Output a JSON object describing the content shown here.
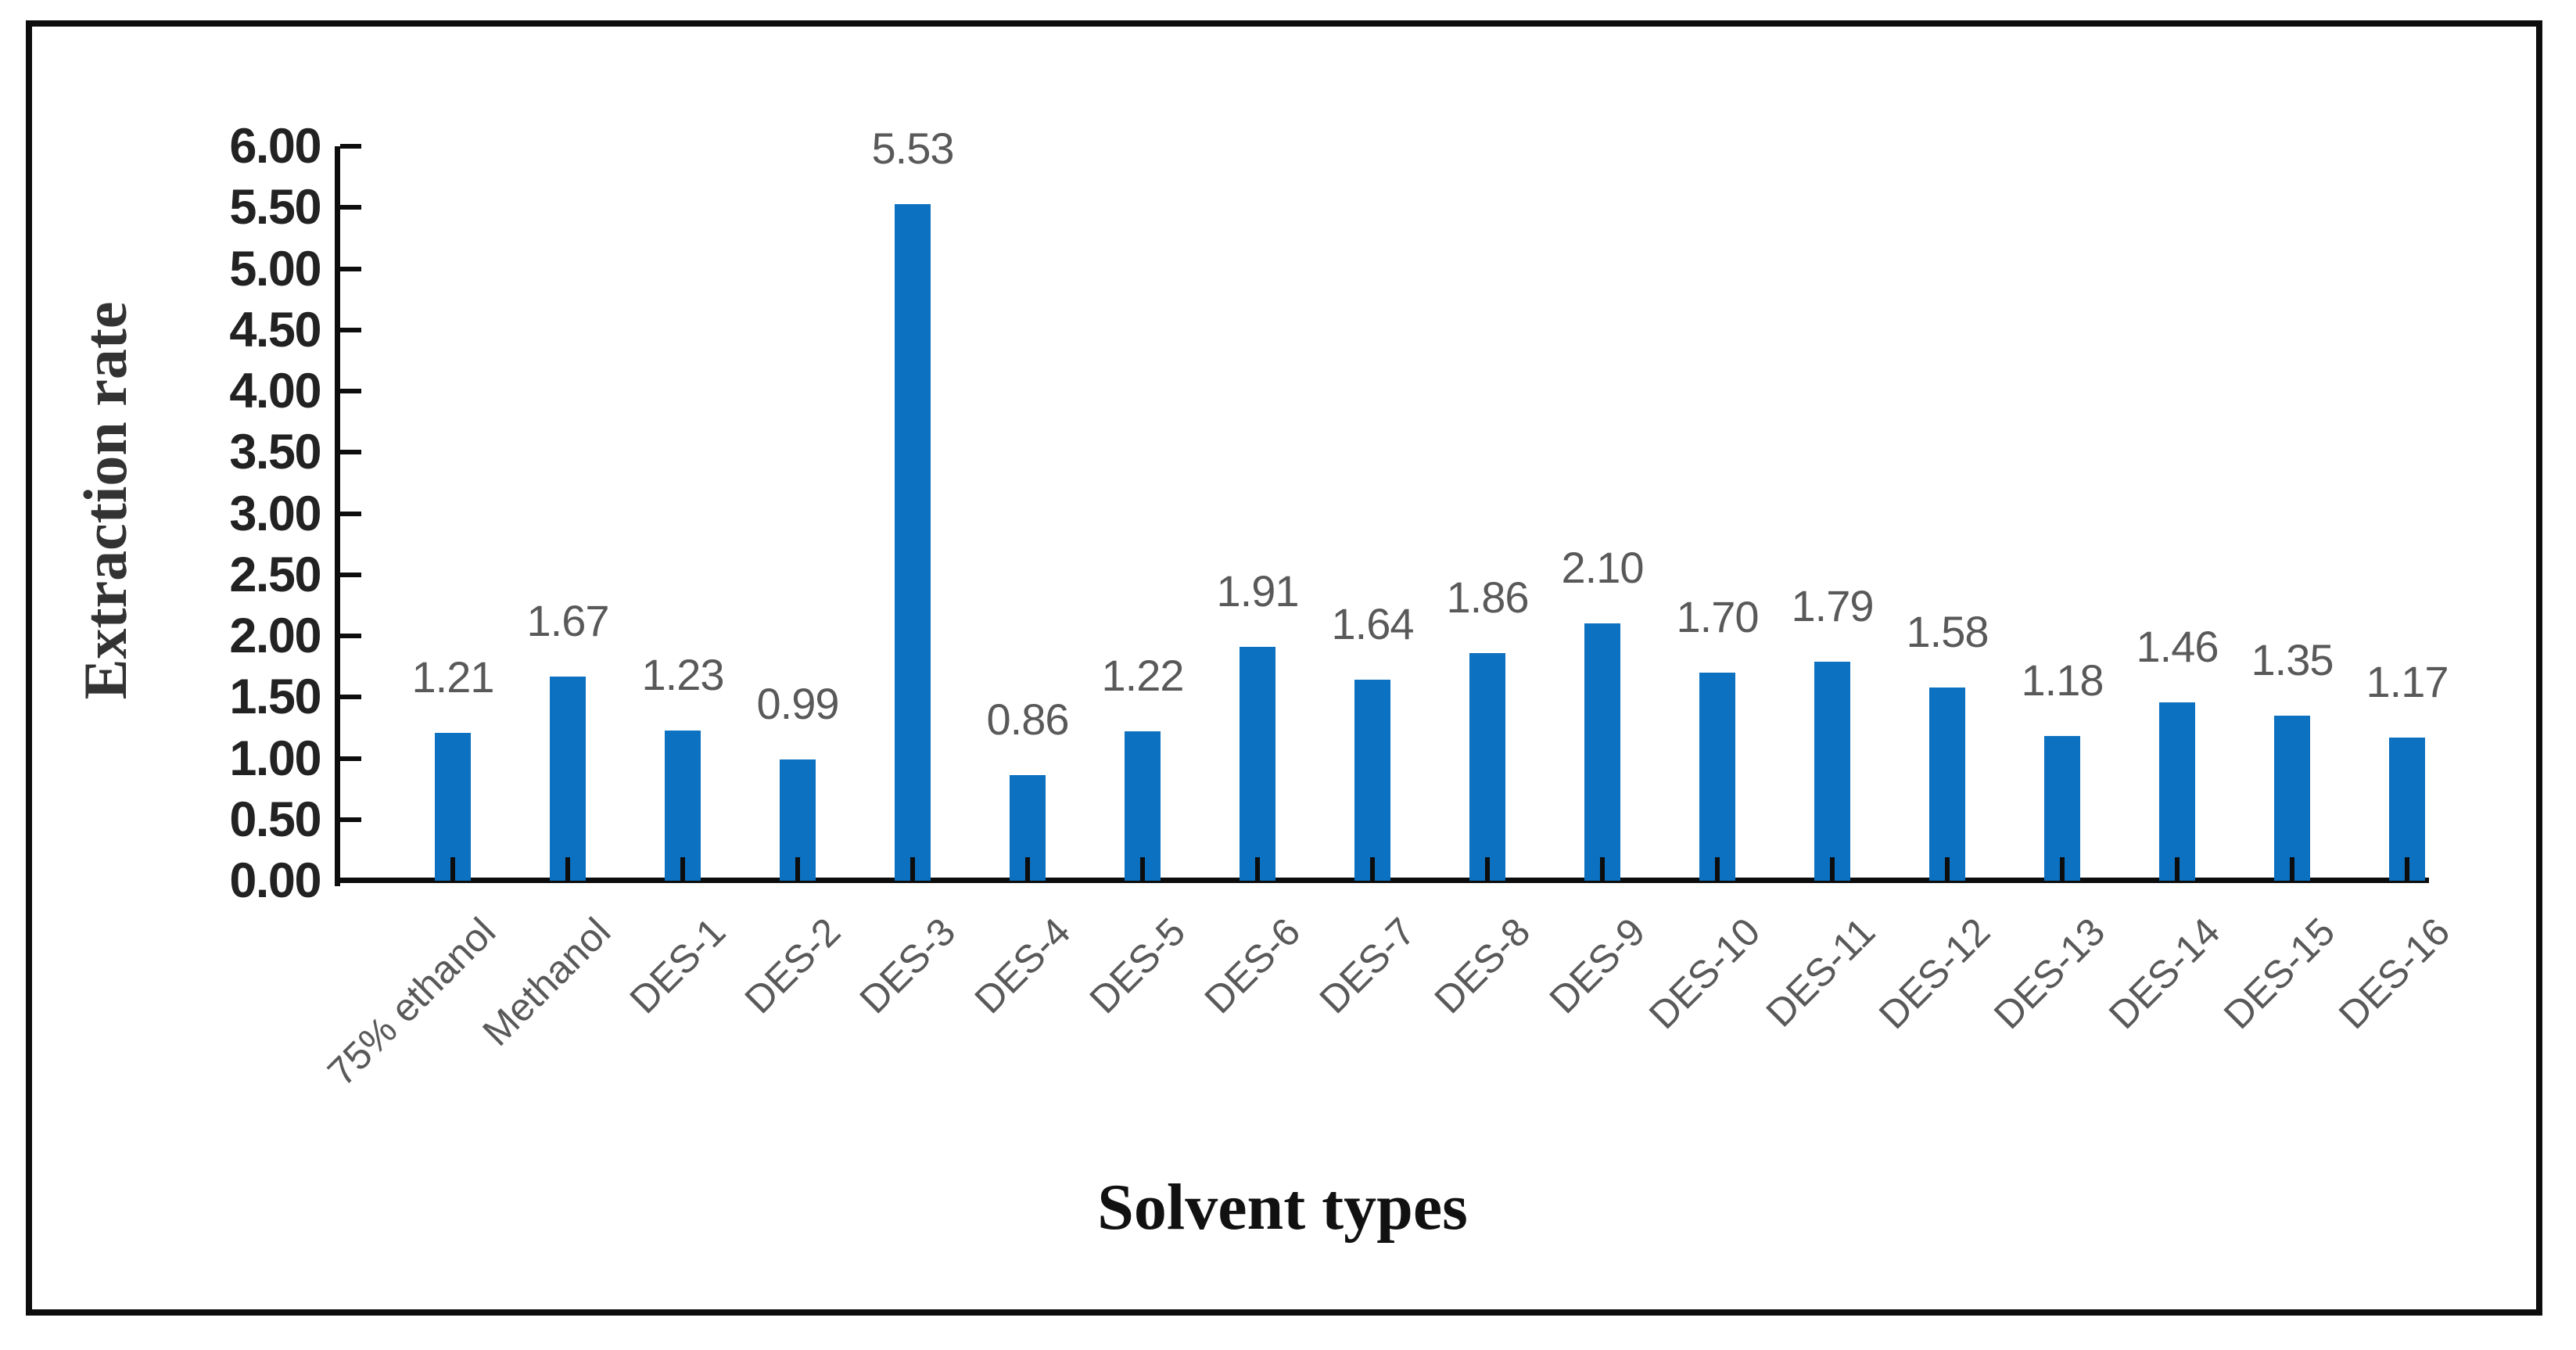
{
  "figure": {
    "x_axis_title": "Solvent types",
    "y_axis_title": "Extraction rate"
  },
  "chart_data": {
    "type": "bar",
    "title": "",
    "xlabel": "Solvent types",
    "ylabel": "Extraction rate",
    "categories": [
      "75% ethanol",
      "Methanol",
      "DES-1",
      "DES-2",
      "DES-3",
      "DES-4",
      "DES-5",
      "DES-6",
      "DES-7",
      "DES-8",
      "DES-9",
      "DES-10",
      "DES-11",
      "DES-12",
      "DES-13",
      "DES-14",
      "DES-15",
      "DES-16"
    ],
    "values": [
      1.21,
      1.67,
      1.23,
      0.99,
      5.53,
      0.86,
      1.22,
      1.91,
      1.64,
      1.86,
      2.1,
      1.7,
      1.79,
      1.58,
      1.18,
      1.46,
      1.35,
      1.17
    ],
    "data_labels": [
      "1.21",
      "1.67",
      "1.23",
      "0.99",
      "5.53",
      "0.86",
      "1.22",
      "1.91",
      "1.64",
      "1.86",
      "2.10",
      "1.70",
      "1.79",
      "1.58",
      "1.18",
      "1.46",
      "1.35",
      "1.17"
    ],
    "ylim": [
      0,
      6
    ],
    "ytick_step": 0.5,
    "ytick_labels": [
      "0.00",
      "0.50",
      "1.00",
      "1.50",
      "2.00",
      "2.50",
      "3.00",
      "3.50",
      "4.00",
      "4.50",
      "5.00",
      "5.50",
      "6.00"
    ],
    "grid": false,
    "legend": false,
    "bar_color": "#0c71c0",
    "axis_color": "#0d0d0d",
    "ytick_label_color": "#222222",
    "data_label_color": "#595959",
    "category_label_color": "#595959"
  }
}
